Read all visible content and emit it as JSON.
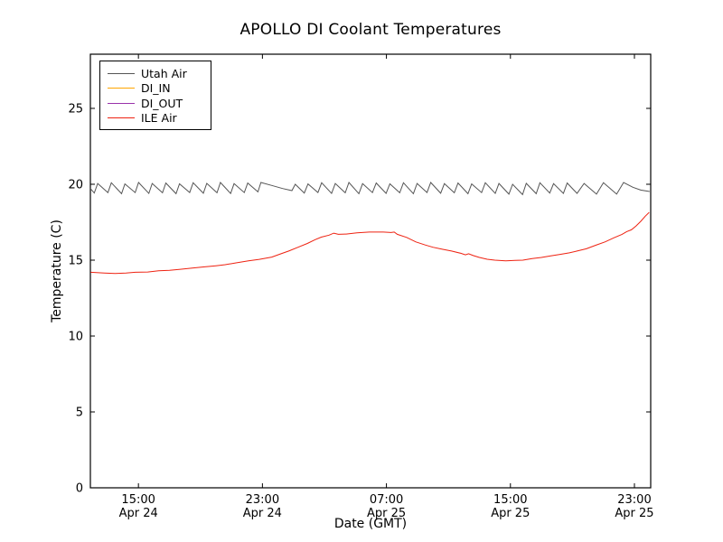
{
  "chart_data": {
    "type": "line",
    "title": "APOLLO DI Coolant Temperatures",
    "xlabel": "Date (GMT)",
    "ylabel": "Temperature (C)",
    "x_unit": "hours since Apr 24 00:00 GMT",
    "xlim": [
      11.9,
      48.05
    ],
    "ylim": [
      0,
      28.57
    ],
    "grid": false,
    "legend_position": "upper left",
    "frame_color": "#000000",
    "yticks": [
      0,
      5,
      10,
      15,
      20,
      25
    ],
    "xticks": [
      {
        "t": 15,
        "time": "15:00",
        "date": "Apr 24"
      },
      {
        "t": 23,
        "time": "23:00",
        "date": "Apr 24"
      },
      {
        "t": 31,
        "time": "07:00",
        "date": "Apr 25"
      },
      {
        "t": 39,
        "time": "15:00",
        "date": "Apr 25"
      },
      {
        "t": 47,
        "time": "23:00",
        "date": "Apr 25"
      }
    ],
    "series": [
      {
        "name": "Utah Air",
        "color": "#555555",
        "points": [
          [
            11.9,
            19.72
          ],
          [
            12.15,
            19.42
          ],
          [
            12.37,
            20.05
          ],
          [
            13.03,
            19.45
          ],
          [
            13.25,
            20.1
          ],
          [
            13.91,
            19.38
          ],
          [
            14.13,
            20.02
          ],
          [
            14.79,
            19.45
          ],
          [
            15.01,
            20.12
          ],
          [
            15.67,
            19.4
          ],
          [
            15.89,
            20.05
          ],
          [
            16.55,
            19.44
          ],
          [
            16.77,
            20.08
          ],
          [
            17.43,
            19.38
          ],
          [
            17.65,
            20.03
          ],
          [
            18.31,
            19.46
          ],
          [
            18.53,
            20.1
          ],
          [
            19.19,
            19.41
          ],
          [
            19.41,
            20.06
          ],
          [
            20.07,
            19.44
          ],
          [
            20.29,
            20.12
          ],
          [
            20.95,
            19.39
          ],
          [
            21.17,
            20.04
          ],
          [
            21.83,
            19.45
          ],
          [
            22.05,
            20.08
          ],
          [
            22.71,
            19.5
          ],
          [
            22.9,
            20.12
          ],
          [
            23.6,
            19.92
          ],
          [
            24.3,
            19.72
          ],
          [
            24.9,
            19.58
          ],
          [
            25.12,
            20.0
          ],
          [
            25.7,
            19.42
          ],
          [
            25.94,
            20.02
          ],
          [
            26.58,
            19.46
          ],
          [
            26.82,
            20.1
          ],
          [
            27.46,
            19.4
          ],
          [
            27.7,
            20.05
          ],
          [
            28.34,
            19.44
          ],
          [
            28.58,
            20.12
          ],
          [
            29.22,
            19.38
          ],
          [
            29.46,
            20.04
          ],
          [
            30.1,
            19.45
          ],
          [
            30.34,
            20.08
          ],
          [
            30.98,
            19.4
          ],
          [
            31.22,
            20.03
          ],
          [
            31.86,
            19.44
          ],
          [
            32.1,
            20.1
          ],
          [
            32.74,
            19.38
          ],
          [
            32.98,
            20.05
          ],
          [
            33.62,
            19.46
          ],
          [
            33.86,
            20.12
          ],
          [
            34.5,
            19.41
          ],
          [
            34.74,
            20.04
          ],
          [
            35.38,
            19.44
          ],
          [
            35.62,
            20.08
          ],
          [
            36.26,
            19.38
          ],
          [
            36.5,
            20.02
          ],
          [
            37.14,
            19.45
          ],
          [
            37.38,
            20.1
          ],
          [
            38.02,
            19.4
          ],
          [
            38.26,
            20.05
          ],
          [
            38.9,
            19.35
          ],
          [
            39.14,
            20.0
          ],
          [
            39.78,
            19.32
          ],
          [
            40.02,
            20.06
          ],
          [
            40.66,
            19.38
          ],
          [
            40.9,
            20.1
          ],
          [
            41.54,
            19.42
          ],
          [
            41.78,
            20.04
          ],
          [
            42.42,
            19.4
          ],
          [
            42.66,
            20.08
          ],
          [
            43.3,
            19.4
          ],
          [
            43.75,
            20.05
          ],
          [
            44.55,
            19.35
          ],
          [
            45.0,
            20.1
          ],
          [
            45.85,
            19.35
          ],
          [
            46.3,
            20.12
          ],
          [
            46.9,
            19.8
          ],
          [
            47.4,
            19.62
          ],
          [
            47.98,
            19.52
          ]
        ]
      },
      {
        "name": "DI_IN",
        "color": "#ffa500",
        "points": []
      },
      {
        "name": "DI_OUT",
        "color": "#9933aa",
        "points": []
      },
      {
        "name": "ILE Air",
        "color": "#ee2211",
        "points": [
          [
            11.92,
            14.2
          ],
          [
            12.8,
            14.15
          ],
          [
            13.5,
            14.12
          ],
          [
            14.2,
            14.15
          ],
          [
            14.8,
            14.2
          ],
          [
            15.6,
            14.22
          ],
          [
            16.3,
            14.3
          ],
          [
            17.0,
            14.33
          ],
          [
            17.7,
            14.4
          ],
          [
            18.4,
            14.47
          ],
          [
            19.2,
            14.55
          ],
          [
            20.0,
            14.63
          ],
          [
            20.6,
            14.7
          ],
          [
            21.3,
            14.82
          ],
          [
            22.1,
            14.95
          ],
          [
            22.8,
            15.05
          ],
          [
            23.6,
            15.2
          ],
          [
            24.2,
            15.42
          ],
          [
            24.7,
            15.6
          ],
          [
            25.3,
            15.85
          ],
          [
            25.9,
            16.1
          ],
          [
            26.4,
            16.35
          ],
          [
            26.8,
            16.52
          ],
          [
            27.3,
            16.65
          ],
          [
            27.6,
            16.78
          ],
          [
            27.9,
            16.7
          ],
          [
            28.4,
            16.72
          ],
          [
            29.1,
            16.8
          ],
          [
            29.9,
            16.85
          ],
          [
            30.8,
            16.85
          ],
          [
            31.3,
            16.82
          ],
          [
            31.5,
            16.85
          ],
          [
            31.7,
            16.7
          ],
          [
            32.3,
            16.5
          ],
          [
            32.9,
            16.2
          ],
          [
            33.5,
            16.0
          ],
          [
            34.0,
            15.85
          ],
          [
            34.6,
            15.72
          ],
          [
            35.2,
            15.6
          ],
          [
            35.8,
            15.45
          ],
          [
            36.1,
            15.35
          ],
          [
            36.3,
            15.42
          ],
          [
            36.6,
            15.3
          ],
          [
            37.0,
            15.18
          ],
          [
            37.5,
            15.06
          ],
          [
            38.0,
            15.0
          ],
          [
            38.7,
            14.96
          ],
          [
            39.3,
            14.98
          ],
          [
            39.8,
            15.0
          ],
          [
            40.4,
            15.1
          ],
          [
            41.0,
            15.18
          ],
          [
            41.6,
            15.28
          ],
          [
            42.2,
            15.38
          ],
          [
            42.8,
            15.48
          ],
          [
            43.3,
            15.6
          ],
          [
            43.9,
            15.75
          ],
          [
            44.5,
            15.98
          ],
          [
            45.1,
            16.2
          ],
          [
            45.7,
            16.48
          ],
          [
            46.2,
            16.7
          ],
          [
            46.5,
            16.88
          ],
          [
            46.8,
            17.0
          ],
          [
            47.1,
            17.25
          ],
          [
            47.4,
            17.55
          ],
          [
            47.7,
            17.9
          ],
          [
            47.95,
            18.15
          ]
        ]
      }
    ]
  }
}
